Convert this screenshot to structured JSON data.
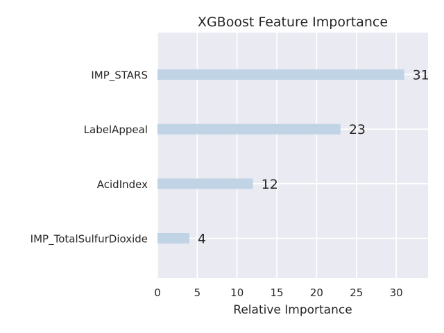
{
  "chart_data": {
    "type": "bar",
    "orientation": "horizontal",
    "title": "XGBoost Feature Importance",
    "xlabel": "Relative Importance",
    "ylabel": "",
    "categories": [
      "IMP_STARS",
      "LabelAppeal",
      "AcidIndex",
      "IMP_TotalSulfurDioxide"
    ],
    "values": [
      31,
      23,
      12,
      4
    ],
    "xlim": [
      0,
      34
    ],
    "xticks": [
      0,
      5,
      10,
      15,
      20,
      25,
      30
    ],
    "grid": true,
    "bar_color": "#c0d4e6",
    "plot_background": "#eaeaf2",
    "grid_color": "#ffffff"
  }
}
